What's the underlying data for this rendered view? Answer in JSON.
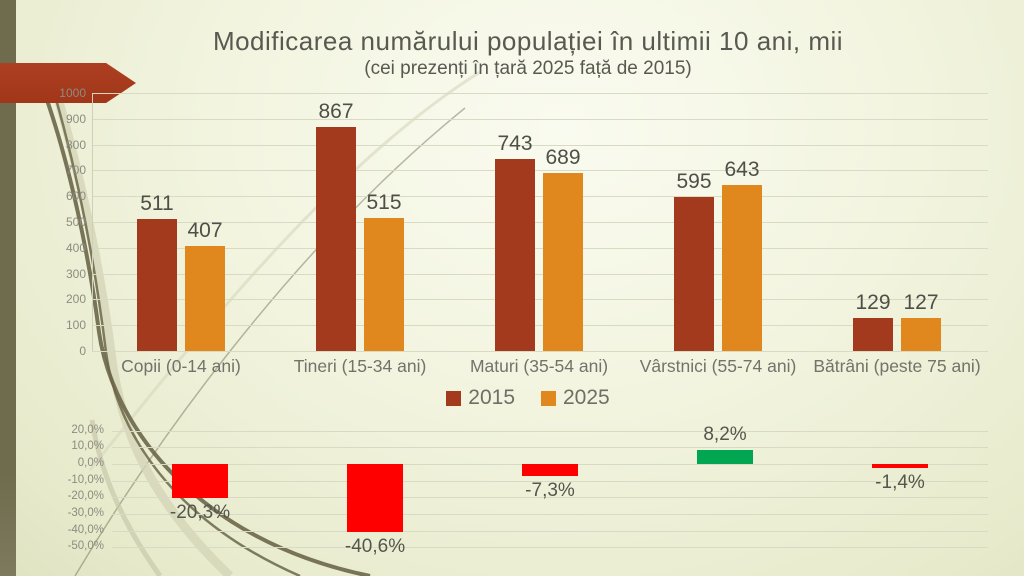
{
  "page": {
    "title": "Modificarea numărului populației în ultimii 10 ani, mii",
    "subtitle": "(cei prezenți în țară 2025 față de 2015)"
  },
  "theme": {
    "left_strip_color": "#6f6b4d",
    "arrow_color": "#a83b1f",
    "background_color": "#eef0d8",
    "gridline_color": "#d9dac4",
    "tick_text_color": "#8c8c80",
    "value_text_color": "#4e4f47"
  },
  "legend": {
    "items": [
      {
        "label": "2015",
        "color": "#a43a1d"
      },
      {
        "label": "2025",
        "color": "#e0871e"
      }
    ]
  },
  "chart_data": [
    {
      "type": "bar",
      "title": "Modificarea numărului populației în ultimii 10 ani, mii",
      "subtitle": "(cei prezenți în țară 2025 față de 2015)",
      "categories": [
        "Copii (0-14 ani)",
        "Tineri (15-34 ani)",
        "Maturi (35-54 ani)",
        "Vârstnici (55-74 ani)",
        "Bătrâni (peste 75 ani)"
      ],
      "series": [
        {
          "name": "2015",
          "color": "#a43a1d",
          "values": [
            511,
            867,
            743,
            595,
            129
          ]
        },
        {
          "name": "2025",
          "color": "#e0871e",
          "values": [
            407,
            515,
            689,
            643,
            127
          ]
        }
      ],
      "ylabel": "",
      "xlabel": "",
      "ylim": [
        0,
        1000
      ],
      "ytick_step": 100,
      "ytick_labels": [
        "0",
        "100",
        "200",
        "300",
        "400",
        "500",
        "600",
        "700",
        "800",
        "900",
        "1000"
      ],
      "grid": true,
      "legend_position": "bottom"
    },
    {
      "type": "bar",
      "title": "",
      "categories": [
        "Copii (0-14 ani)",
        "Tineri (15-34 ani)",
        "Maturi (35-54 ani)",
        "Vârstnici (55-74 ani)",
        "Bătrâni (peste 75 ani)"
      ],
      "values": [
        -20.3,
        -40.6,
        -7.3,
        8.2,
        -1.4
      ],
      "value_labels": [
        "-20,3%",
        "-40,6%",
        "-7,3%",
        "8,2%",
        "-1,4%"
      ],
      "ylim": [
        -50,
        20
      ],
      "ytick_step": 10,
      "ytick_labels": [
        "20,0%",
        "10,0%",
        "0,0%",
        "-10,0%",
        "-20,0%",
        "-30,0%",
        "-40,0%",
        "-50,0%"
      ],
      "ytick_values": [
        20,
        10,
        0,
        -10,
        -20,
        -30,
        -40,
        -50
      ],
      "grid": true,
      "negative_color": "#ff0000",
      "positive_color": "#00a651"
    }
  ]
}
